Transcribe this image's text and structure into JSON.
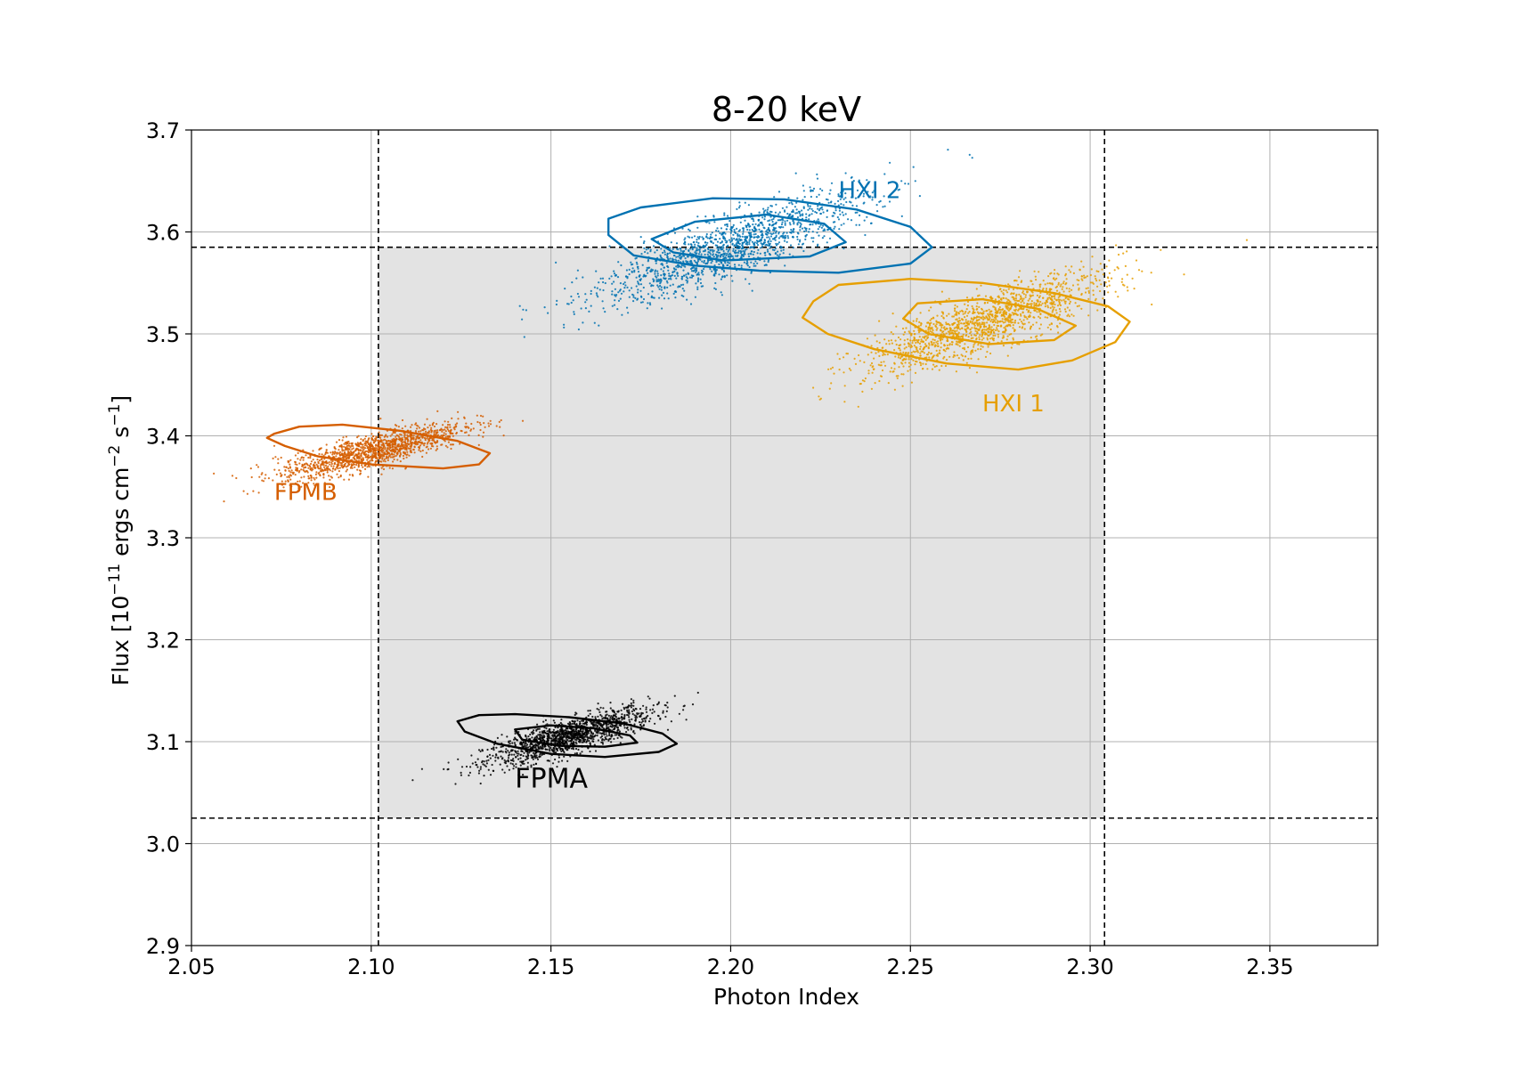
{
  "chart_data": {
    "type": "scatter",
    "title": "8-20 keV",
    "xlabel": "Photon Index",
    "ylabel": {
      "prefix": "Flux [10",
      "exp1": "−11",
      "mid": " ergs cm",
      "exp2": "−2",
      "mid2": " s",
      "exp3": "−1",
      "suffix": "]"
    },
    "xlim": [
      2.05,
      2.38
    ],
    "ylim": [
      2.9,
      3.7
    ],
    "xticks": [
      2.05,
      2.1,
      2.15,
      2.2,
      2.25,
      2.3,
      2.35
    ],
    "xtick_labels": [
      "2.05",
      "2.10",
      "2.15",
      "2.20",
      "2.25",
      "2.30",
      "2.35"
    ],
    "yticks": [
      2.9,
      3.0,
      3.1,
      3.2,
      3.3,
      3.4,
      3.5,
      3.6,
      3.7
    ],
    "ytick_labels": [
      "2.9",
      "3.0",
      "3.1",
      "3.2",
      "3.3",
      "3.4",
      "3.5",
      "3.6",
      "3.7"
    ],
    "grid": true,
    "shaded_region": {
      "x": [
        2.102,
        2.304
      ],
      "y": [
        3.025,
        3.585
      ],
      "color": "#e3e3e3"
    },
    "reference_lines": {
      "vertical": [
        2.102,
        2.304
      ],
      "horizontal": [
        3.025,
        3.585
      ]
    },
    "series": [
      {
        "name": "FPMA",
        "color": "#000000",
        "center": [
          2.155,
          3.105
        ],
        "spread": [
          0.012,
          0.008
        ],
        "tilt": -0.28,
        "n_points": 1400,
        "contours": [
          [
            [
              2.124,
              3.12
            ],
            [
              2.13,
              3.126
            ],
            [
              2.14,
              3.127
            ],
            [
              2.155,
              3.124
            ],
            [
              2.17,
              3.118
            ],
            [
              2.181,
              3.108
            ],
            [
              2.185,
              3.098
            ],
            [
              2.18,
              3.09
            ],
            [
              2.165,
              3.085
            ],
            [
              2.15,
              3.088
            ],
            [
              2.135,
              3.098
            ],
            [
              2.126,
              3.11
            ]
          ],
          [
            [
              2.14,
              3.112
            ],
            [
              2.15,
              3.116
            ],
            [
              2.162,
              3.113
            ],
            [
              2.172,
              3.106
            ],
            [
              2.174,
              3.099
            ],
            [
              2.165,
              3.095
            ],
            [
              2.152,
              3.096
            ],
            [
              2.142,
              3.102
            ]
          ]
        ],
        "label_pos": [
          2.14,
          3.055
        ],
        "label_size": 30
      },
      {
        "name": "FPMB",
        "color": "#d55e00",
        "center": [
          2.1,
          3.385
        ],
        "spread": [
          0.013,
          0.008
        ],
        "tilt": -0.25,
        "n_points": 1400,
        "contours": [
          [
            [
              2.073,
              3.402
            ],
            [
              2.08,
              3.409
            ],
            [
              2.092,
              3.411
            ],
            [
              2.108,
              3.405
            ],
            [
              2.124,
              3.395
            ],
            [
              2.133,
              3.383
            ],
            [
              2.13,
              3.372
            ],
            [
              2.12,
              3.368
            ],
            [
              2.1,
              3.372
            ],
            [
              2.085,
              3.38
            ],
            [
              2.076,
              3.39
            ],
            [
              2.071,
              3.398
            ]
          ]
        ],
        "label_pos": [
          2.073,
          3.337
        ],
        "label_size": 26
      },
      {
        "name": "HXI 1",
        "color": "#e69f00",
        "center": [
          2.27,
          3.51
        ],
        "spread": [
          0.018,
          0.013
        ],
        "tilt": -0.35,
        "n_points": 1500,
        "contours": [
          [
            [
              2.223,
              3.532
            ],
            [
              2.23,
              3.548
            ],
            [
              2.25,
              3.554
            ],
            [
              2.27,
              3.55
            ],
            [
              2.29,
              3.54
            ],
            [
              2.305,
              3.527
            ],
            [
              2.311,
              3.512
            ],
            [
              2.307,
              3.492
            ],
            [
              2.295,
              3.474
            ],
            [
              2.28,
              3.465
            ],
            [
              2.26,
              3.471
            ],
            [
              2.24,
              3.485
            ],
            [
              2.227,
              3.5
            ],
            [
              2.22,
              3.516
            ]
          ],
          [
            [
              2.252,
              3.53
            ],
            [
              2.27,
              3.534
            ],
            [
              2.285,
              3.525
            ],
            [
              2.296,
              3.508
            ],
            [
              2.29,
              3.494
            ],
            [
              2.272,
              3.49
            ],
            [
              2.255,
              3.5
            ],
            [
              2.248,
              3.515
            ]
          ]
        ],
        "label_pos": [
          2.27,
          3.424
        ],
        "label_size": 26
      },
      {
        "name": "HXI 2",
        "color": "#0072b2",
        "center": [
          2.2,
          3.585
        ],
        "spread": [
          0.02,
          0.014
        ],
        "tilt": -0.35,
        "n_points": 1500,
        "contours": [
          [
            [
              2.166,
              3.613
            ],
            [
              2.175,
              3.624
            ],
            [
              2.195,
              3.633
            ],
            [
              2.215,
              3.632
            ],
            [
              2.235,
              3.622
            ],
            [
              2.25,
              3.605
            ],
            [
              2.256,
              3.585
            ],
            [
              2.25,
              3.569
            ],
            [
              2.23,
              3.56
            ],
            [
              2.208,
              3.562
            ],
            [
              2.19,
              3.567
            ],
            [
              2.173,
              3.577
            ],
            [
              2.166,
              3.597
            ]
          ],
          [
            [
              2.178,
              3.593
            ],
            [
              2.19,
              3.61
            ],
            [
              2.21,
              3.617
            ],
            [
              2.226,
              3.608
            ],
            [
              2.232,
              3.59
            ],
            [
              2.222,
              3.576
            ],
            [
              2.198,
              3.572
            ],
            [
              2.184,
              3.58
            ]
          ]
        ],
        "label_pos": [
          2.23,
          3.633
        ],
        "label_size": 26
      }
    ]
  }
}
